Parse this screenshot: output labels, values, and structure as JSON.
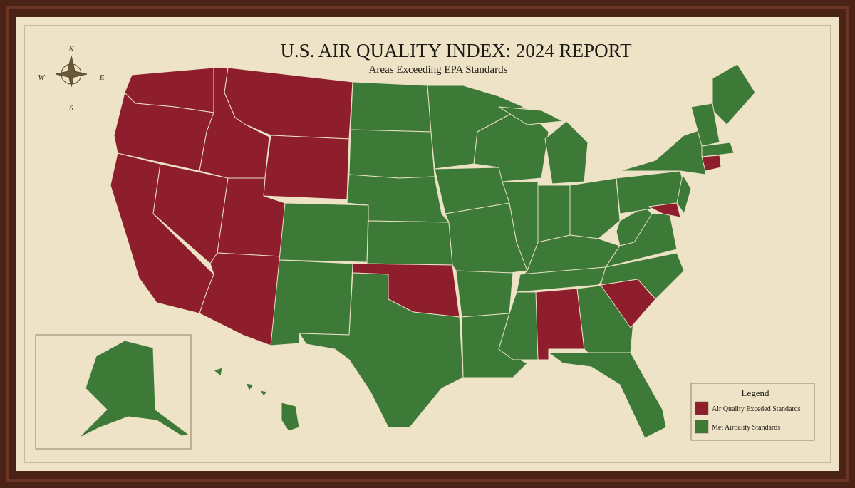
{
  "title": "U.S. AIR QUALITY INDEX: 2024 REPORT",
  "subtitle": "Areas Exceeding EPA Standards",
  "compass": {
    "n": "N",
    "e": "E",
    "s": "S",
    "w": "W"
  },
  "legend": {
    "title": "Legend",
    "items": [
      {
        "label": "Air Quality Exceded Standards",
        "color": "#8e1e2b"
      },
      {
        "label": "Met Airoality Standards",
        "color": "#3d7a37"
      }
    ]
  }
}
